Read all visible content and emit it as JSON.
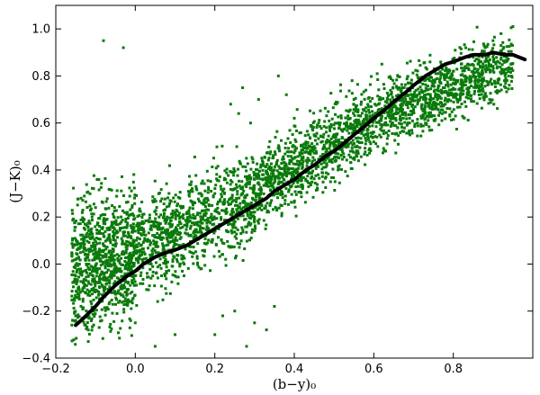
{
  "chart_data": {
    "type": "scatter",
    "title": "",
    "xlabel": "(b−y)₀",
    "ylabel": "(J−K)₀",
    "xlim": [
      -0.2,
      1.0
    ],
    "ylim": [
      -0.4,
      1.1
    ],
    "grid": false,
    "x_ticks": [
      "−0.2",
      "0.0",
      "0.2",
      "0.4",
      "0.6",
      "0.8"
    ],
    "y_ticks": [
      "−0.4",
      "−0.2",
      "0.0",
      "0.2",
      "0.4",
      "0.6",
      "0.8",
      "1.0"
    ],
    "x_tick_values": [
      -0.2,
      0.0,
      0.2,
      0.4,
      0.6,
      0.8
    ],
    "y_tick_values": [
      -0.4,
      -0.2,
      0.0,
      0.2,
      0.4,
      0.6,
      0.8,
      1.0
    ],
    "colors": {
      "points": "#0a7a0a",
      "fit": "#000000"
    },
    "series": [
      {
        "kind": "scatter",
        "note_x": [
          -0.15,
          -0.12,
          -0.1,
          -0.08,
          -0.05,
          -0.03,
          0.0,
          0.02,
          0.05,
          0.08,
          0.1,
          0.12,
          0.15,
          0.18,
          0.2,
          0.22,
          0.25,
          0.28,
          0.3,
          0.32,
          0.35,
          0.38,
          0.4,
          0.42,
          0.45,
          0.48,
          0.5,
          0.52,
          0.55,
          0.58,
          0.6,
          0.62,
          0.65,
          0.68,
          0.7,
          0.72,
          0.75,
          0.78,
          0.8,
          0.82,
          0.85,
          0.88,
          0.9,
          0.92,
          0.95,
          -0.13,
          -0.06,
          0.03,
          0.07,
          0.13,
          0.17,
          0.24,
          0.27,
          0.33,
          0.37,
          0.43,
          0.47,
          0.53,
          0.57,
          0.63,
          0.67,
          0.73,
          0.77,
          0.83,
          0.87,
          -0.11,
          -0.02,
          0.09,
          0.19,
          0.29,
          0.39,
          0.49,
          0.59,
          0.69,
          0.79,
          0.89,
          0.01,
          0.11,
          0.21,
          0.31,
          0.41,
          0.51,
          0.61,
          0.71,
          0.81,
          -0.09,
          0.04,
          0.14,
          0.26,
          0.36,
          0.46,
          0.56,
          0.66,
          0.76,
          0.86,
          0.06,
          0.16,
          0.34,
          0.44,
          0.54,
          0.64,
          0.74,
          0.84,
          0.7,
          0.73,
          0.76,
          0.79,
          0.82,
          0.85,
          0.88,
          0.65,
          0.68,
          0.71,
          0.74,
          0.77,
          0.8,
          0.83,
          0.86,
          0.89,
          0.25,
          0.3,
          0.35,
          0.2,
          0.22,
          0.28,
          0.33,
          0.27,
          0.31,
          0.36,
          0.38,
          0.24,
          0.26,
          0.29,
          0.4,
          0.45,
          0.5,
          0.55,
          0.6,
          0.63,
          0.66,
          0.69,
          0.72,
          0.75,
          0.78,
          0.81,
          0.84,
          0.87,
          0.9,
          0.93,
          -0.03,
          -0.08,
          0.0,
          0.05,
          0.1
        ],
        "note_y": [
          -0.05,
          0.0,
          0.05,
          0.08,
          0.1,
          0.12,
          0.14,
          0.15,
          0.18,
          0.2,
          0.22,
          0.24,
          0.26,
          0.28,
          0.3,
          0.31,
          0.32,
          0.34,
          0.36,
          0.38,
          0.4,
          0.42,
          0.45,
          0.47,
          0.5,
          0.52,
          0.55,
          0.57,
          0.58,
          0.6,
          0.63,
          0.65,
          0.68,
          0.7,
          0.72,
          0.74,
          0.76,
          0.8,
          0.82,
          0.85,
          0.88,
          0.92,
          0.95,
          0.98,
          1.01,
          -0.1,
          0.02,
          0.1,
          0.11,
          0.16,
          0.19,
          0.28,
          0.3,
          0.35,
          0.37,
          0.44,
          0.46,
          0.52,
          0.56,
          0.62,
          0.66,
          0.72,
          0.74,
          0.84,
          0.86,
          0.15,
          0.22,
          0.06,
          0.2,
          0.25,
          0.33,
          0.44,
          0.52,
          0.62,
          0.74,
          0.84,
          -0.02,
          0.08,
          0.15,
          0.25,
          0.33,
          0.4,
          0.5,
          0.6,
          0.7,
          -0.15,
          0.0,
          0.12,
          0.22,
          0.3,
          0.38,
          0.48,
          0.58,
          0.66,
          0.76,
          0.2,
          0.3,
          0.4,
          0.5,
          0.58,
          0.66,
          0.78,
          0.88,
          0.66,
          0.7,
          0.72,
          0.74,
          0.78,
          0.82,
          0.86,
          0.62,
          0.64,
          0.68,
          0.7,
          0.73,
          0.77,
          0.8,
          0.82,
          0.85,
          -0.2,
          -0.25,
          -0.18,
          -0.3,
          -0.22,
          -0.35,
          -0.28,
          0.75,
          0.7,
          0.8,
          0.72,
          0.68,
          0.64,
          0.6,
          0.62,
          0.55,
          0.5,
          0.7,
          0.52,
          0.48,
          0.58,
          0.6,
          0.62,
          0.66,
          0.68,
          0.72,
          0.75,
          0.78,
          0.82,
          0.86,
          0.92,
          0.95,
          -0.25,
          -0.35,
          -0.3,
          -0.15,
          -0.2
        ]
      },
      {
        "kind": "line",
        "x": [
          -0.15,
          -0.13,
          -0.1,
          -0.08,
          -0.05,
          -0.02,
          0.0,
          0.02,
          0.05,
          0.08,
          0.1,
          0.13,
          0.15,
          0.18,
          0.2,
          0.23,
          0.25,
          0.28,
          0.3,
          0.33,
          0.35,
          0.38,
          0.4,
          0.43,
          0.45,
          0.48,
          0.5,
          0.53,
          0.55,
          0.58,
          0.6,
          0.63,
          0.65,
          0.68,
          0.7,
          0.73,
          0.75,
          0.78,
          0.8,
          0.83,
          0.85,
          0.88,
          0.9,
          0.93,
          0.95,
          0.98
        ],
        "y": [
          -0.26,
          -0.23,
          -0.18,
          -0.14,
          -0.09,
          -0.05,
          -0.03,
          0.0,
          0.03,
          0.05,
          0.06,
          0.08,
          0.1,
          0.13,
          0.15,
          0.18,
          0.2,
          0.23,
          0.25,
          0.28,
          0.31,
          0.34,
          0.36,
          0.4,
          0.42,
          0.46,
          0.48,
          0.52,
          0.55,
          0.59,
          0.62,
          0.66,
          0.69,
          0.73,
          0.76,
          0.8,
          0.82,
          0.85,
          0.86,
          0.88,
          0.89,
          0.89,
          0.9,
          0.89,
          0.89,
          0.87
        ]
      }
    ],
    "scatter_cloud": [
      {
        "x0": -0.16,
        "x1": 0.0,
        "center_slope": 0.55,
        "center_offset": 0.06,
        "spread": 0.14
      },
      {
        "x0": 0.0,
        "x1": 0.3,
        "center_slope": 0.75,
        "center_offset": 0.06,
        "spread": 0.1
      },
      {
        "x0": 0.3,
        "x1": 0.6,
        "center_slope": 1.05,
        "center_offset": -0.01,
        "spread": 0.08
      },
      {
        "x0": 0.6,
        "x1": 0.95,
        "center_slope": 0.62,
        "center_offset": 0.26,
        "spread": 0.07
      }
    ]
  }
}
